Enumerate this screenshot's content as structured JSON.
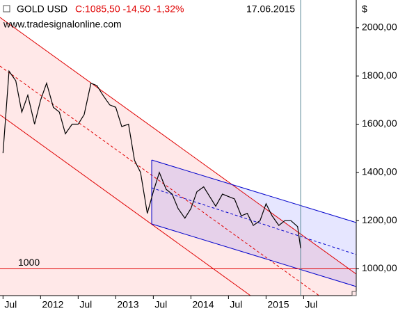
{
  "chart_data": {
    "type": "line",
    "title": "C:1085,50 -14,50 -1,32%",
    "watermark": "www.tradesignalonline.com",
    "y_unit": "$",
    "cursor": {
      "value": 2015.46,
      "label": "17.06.2015"
    },
    "hline": {
      "value": 1000,
      "label": "1000",
      "color": "#e00000"
    },
    "x": [
      2011.5,
      2011.58,
      2011.67,
      2011.75,
      2011.83,
      2011.92,
      2012,
      2012.08,
      2012.17,
      2012.25,
      2012.33,
      2012.42,
      2012.5,
      2012.58,
      2012.67,
      2012.75,
      2012.83,
      2012.92,
      2013,
      2013.08,
      2013.17,
      2013.25,
      2013.33,
      2013.42,
      2013.5,
      2013.58,
      2013.67,
      2013.75,
      2013.83,
      2013.92,
      2014,
      2014.08,
      2014.17,
      2014.25,
      2014.33,
      2014.42,
      2014.5,
      2014.58,
      2014.67,
      2014.75,
      2014.83,
      2014.92,
      2015,
      2015.08,
      2015.17,
      2015.25,
      2015.33,
      2015.42,
      2015.46
    ],
    "series": [
      {
        "name": "GOLD USD",
        "color": "#000000",
        "values": [
          1480,
          1820,
          1780,
          1650,
          1720,
          1600,
          1700,
          1770,
          1670,
          1650,
          1560,
          1600,
          1600,
          1640,
          1770,
          1760,
          1720,
          1680,
          1670,
          1590,
          1600,
          1450,
          1400,
          1230,
          1320,
          1400,
          1330,
          1310,
          1250,
          1210,
          1250,
          1320,
          1340,
          1300,
          1260,
          1310,
          1300,
          1290,
          1220,
          1230,
          1180,
          1200,
          1270,
          1220,
          1180,
          1200,
          1200,
          1175,
          1085.5
        ]
      }
    ],
    "xlim": [
      2011.46,
      2016.2
    ],
    "xticks": [
      {
        "value": 2011.5,
        "label": "Jul"
      },
      2012,
      {
        "value": 2012.5,
        "label": "Jul"
      },
      2013,
      {
        "value": 2013.5,
        "label": "Jul"
      },
      2014,
      {
        "value": 2014.5,
        "label": "Jul"
      },
      2015,
      {
        "value": 2015.5,
        "label": "Jul"
      }
    ],
    "ylim": [
      889,
      2115
    ],
    "yticks": [
      {
        "value": 1000,
        "label": "1000,00"
      },
      {
        "value": 1200,
        "label": "1200,00"
      },
      {
        "value": 1400,
        "label": "1400,00"
      },
      {
        "value": 1600,
        "label": "1600,00"
      },
      {
        "value": 1800,
        "label": "1800,00"
      },
      {
        "value": 2000,
        "label": "2000,00"
      }
    ]
  }
}
